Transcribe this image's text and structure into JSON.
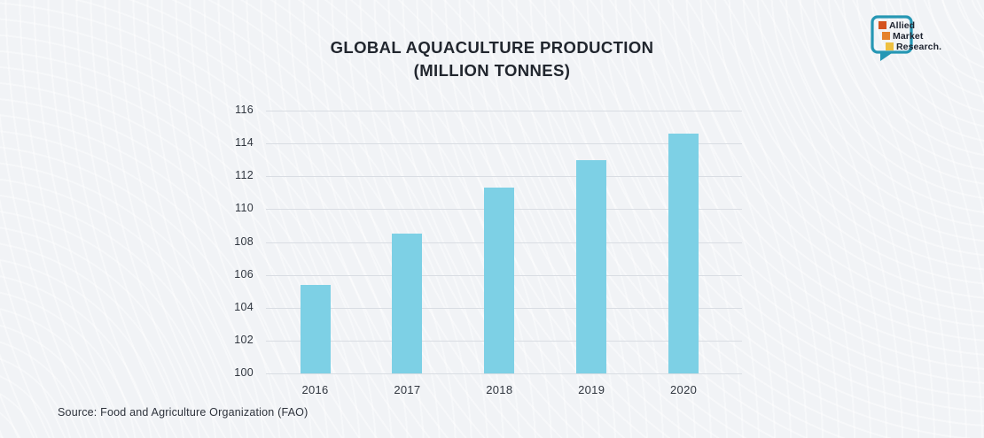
{
  "page": {
    "background": "#f1f3f6"
  },
  "header": {
    "title_line1": "GLOBAL AQUACULTURE PRODUCTION",
    "title_line2": "(MILLION TONNES)"
  },
  "logo": {
    "line1": "Allied",
    "line2": "Market",
    "line3": "Research.",
    "bubble_color": "#2697b4",
    "square_colors": [
      "#d4531f",
      "#e5822c",
      "#eec041"
    ]
  },
  "chart_data": {
    "type": "bar",
    "title": "GLOBAL AQUACULTURE PRODUCTION (MILLION TONNES)",
    "categories": [
      "2016",
      "2017",
      "2018",
      "2019",
      "2020"
    ],
    "values": [
      105.4,
      108.5,
      111.3,
      113.0,
      114.6
    ],
    "xlabel": "",
    "ylabel": "",
    "ylim": [
      100,
      116
    ],
    "ytick_step": 2,
    "yticks": [
      100,
      102,
      104,
      106,
      108,
      110,
      112,
      114,
      116
    ],
    "grid": true,
    "legend": false,
    "bar_color": "#7dd0e5",
    "gridline_color": "#d9dde3"
  },
  "footer": {
    "source": "Source: Food and Agriculture Organization (FAO)"
  }
}
